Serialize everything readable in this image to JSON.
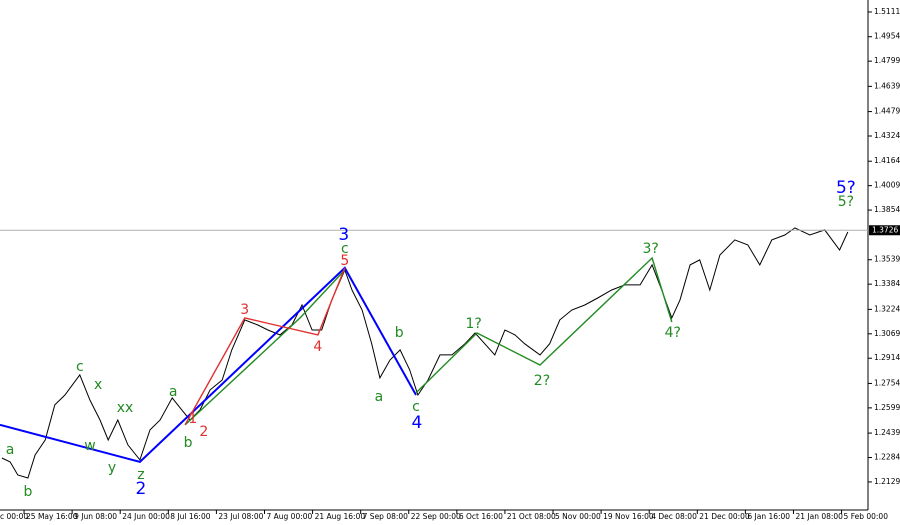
{
  "chart_data": {
    "type": "line",
    "xlim": [
      0.5,
      18.55
    ],
    "ylim": [
      1.1951,
      1.5187
    ],
    "xticks": [
      {
        "value": 0,
        "label": "c 00:00"
      },
      {
        "value": 1,
        "label": "25 May 16:00"
      },
      {
        "value": 2,
        "label": "9 Jun 08:00"
      },
      {
        "value": 3,
        "label": "24 Jun 00:00"
      },
      {
        "value": 4,
        "label": "8 Jul 16:00"
      },
      {
        "value": 5,
        "label": "23 Jul 08:00"
      },
      {
        "value": 6,
        "label": "7 Aug 00:00"
      },
      {
        "value": 7,
        "label": "21 Aug 16:00"
      },
      {
        "value": 8,
        "label": "7 Sep 08:00"
      },
      {
        "value": 9,
        "label": "22 Sep 00:00"
      },
      {
        "value": 10,
        "label": "6 Oct 16:00"
      },
      {
        "value": 11,
        "label": "21 Oct 08:00"
      },
      {
        "value": 12,
        "label": "5 Nov 00:00"
      },
      {
        "value": 13,
        "label": "19 Nov 16:00"
      },
      {
        "value": 14,
        "label": "4 Dec 08:00"
      },
      {
        "value": 15,
        "label": "21 Dec 00:00"
      },
      {
        "value": 16,
        "label": "6 Jan 16:00"
      },
      {
        "value": 17,
        "label": "21 Jan 08:00"
      },
      {
        "value": 18,
        "label": "5 Feb 00:00"
      }
    ],
    "yticks": [
      1.2129,
      1.2284,
      1.2439,
      1.2599,
      1.2754,
      1.2914,
      1.3069,
      1.3224,
      1.3384,
      1.3539,
      1.3854,
      1.4009,
      1.4164,
      1.4324,
      1.4479,
      1.4639,
      1.4799,
      1.4954,
      1.5111
    ],
    "last_price": 1.3726,
    "series": [
      {
        "color": "#000000",
        "x": [
          0.54,
          0.71,
          0.87,
          1.08,
          1.23,
          1.44,
          1.64,
          1.85,
          2.16,
          2.37,
          2.58,
          2.75,
          2.95,
          3.16,
          3.41,
          3.62,
          3.83,
          4.08,
          4.28,
          4.45,
          4.66,
          4.87,
          5.12,
          5.32,
          5.59,
          5.86,
          6.07,
          6.32,
          6.57,
          6.78,
          6.99,
          7.19,
          7.4,
          7.67,
          7.82,
          8.03,
          8.23,
          8.4,
          8.61,
          8.82,
          9.02,
          9.19,
          9.4,
          9.65,
          9.9,
          10.17,
          10.38,
          10.58,
          10.79,
          11.0,
          11.21,
          11.41,
          11.73,
          11.93,
          12.14,
          12.39,
          12.66,
          12.93,
          13.22,
          13.49,
          13.81,
          14.06,
          14.26,
          14.47,
          14.64,
          14.85,
          15.05,
          15.26,
          15.47,
          15.78,
          16.05,
          16.3,
          16.55,
          16.82,
          17.03,
          17.34,
          17.65,
          17.96,
          18.13
        ],
        "values": [
          1.2281,
          1.2256,
          1.2173,
          1.2154,
          1.23,
          1.2395,
          1.2618,
          1.2681,
          1.2808,
          1.2649,
          1.2522,
          1.2395,
          1.2522,
          1.2364,
          1.2269,
          1.2459,
          1.2522,
          1.2662,
          1.2586,
          1.2522,
          1.2586,
          1.2713,
          1.2776,
          1.2967,
          1.3157,
          1.3125,
          1.3093,
          1.3062,
          1.3125,
          1.3252,
          1.3093,
          1.3093,
          1.3284,
          1.3474,
          1.3347,
          1.322,
          1.3006,
          1.2789,
          1.2903,
          1.2967,
          1.284,
          1.2681,
          1.2776,
          1.2935,
          1.2935,
          1.3006,
          1.3074,
          1.3006,
          1.2935,
          1.3093,
          1.3062,
          1.3006,
          1.2935,
          1.3006,
          1.3157,
          1.322,
          1.3252,
          1.3296,
          1.3347,
          1.3379,
          1.3379,
          1.3506,
          1.3347,
          1.317,
          1.3284,
          1.3506,
          1.3538,
          1.3347,
          1.3569,
          1.3665,
          1.3633,
          1.3506,
          1.3665,
          1.3696,
          1.3741,
          1.3696,
          1.3728,
          1.3601,
          1.3715
        ]
      }
    ],
    "overlays": [
      {
        "color": "#0000ff",
        "x": [
          0.5,
          3.41,
          7.67,
          9.15
        ],
        "y": [
          1.2491,
          1.2256,
          1.3487,
          1.2681
        ]
      },
      {
        "color": "#228b22",
        "x": [
          4.35,
          6.74,
          7.67
        ],
        "y": [
          1.2491,
          1.317,
          1.3474
        ]
      },
      {
        "color": "#228b22",
        "x": [
          9.15,
          10.42,
          11.73,
          14.06,
          14.47
        ],
        "y": [
          1.2694,
          1.3074,
          1.2871,
          1.355,
          1.3144
        ]
      },
      {
        "color": "#e03030",
        "x": [
          4.35,
          5.59,
          6.22,
          7.11,
          7.67
        ],
        "y": [
          1.2491,
          1.317,
          1.3125,
          1.3062,
          1.3487
        ]
      }
    ],
    "annotations": [
      {
        "text": "a",
        "x": 0.71,
        "y": 1.2332,
        "color": "#228b22"
      },
      {
        "text": "b",
        "x": 1.08,
        "y": 1.2066,
        "color": "#228b22"
      },
      {
        "text": "c",
        "x": 2.16,
        "y": 1.2859,
        "color": "#228b22"
      },
      {
        "text": "x",
        "x": 2.54,
        "y": 1.2744,
        "color": "#228b22"
      },
      {
        "text": "w",
        "x": 2.37,
        "y": 1.2357,
        "color": "#228b22"
      },
      {
        "text": "xx",
        "x": 3.1,
        "y": 1.2599,
        "color": "#228b22"
      },
      {
        "text": "y",
        "x": 2.83,
        "y": 1.2218,
        "color": "#228b22"
      },
      {
        "text": "z",
        "x": 3.43,
        "y": 1.2173,
        "color": "#228b22"
      },
      {
        "text": "a",
        "x": 4.1,
        "y": 1.27,
        "color": "#228b22"
      },
      {
        "text": "b",
        "x": 4.41,
        "y": 1.2376,
        "color": "#228b22"
      },
      {
        "text": "c",
        "x": 7.67,
        "y": 1.3607,
        "color": "#228b22"
      },
      {
        "text": "a",
        "x": 8.38,
        "y": 1.2668,
        "color": "#228b22"
      },
      {
        "text": "b",
        "x": 8.8,
        "y": 1.3074,
        "color": "#228b22"
      },
      {
        "text": "c",
        "x": 9.15,
        "y": 1.2605,
        "color": "#228b22"
      },
      {
        "text": "1?",
        "x": 10.35,
        "y": 1.3132,
        "color": "#228b22"
      },
      {
        "text": "2?",
        "x": 11.77,
        "y": 1.277,
        "color": "#228b22"
      },
      {
        "text": "3?",
        "x": 14.03,
        "y": 1.3607,
        "color": "#228b22"
      },
      {
        "text": "4?",
        "x": 14.49,
        "y": 1.3074,
        "color": "#228b22"
      },
      {
        "text": "5?",
        "x": 18.09,
        "y": 1.3906,
        "color": "#228b22"
      },
      {
        "text": "2",
        "x": 3.43,
        "y": 1.2085,
        "color": "#0000ff",
        "size": "large"
      },
      {
        "text": "3",
        "x": 7.65,
        "y": 1.3696,
        "color": "#0000ff",
        "size": "large"
      },
      {
        "text": "4",
        "x": 9.17,
        "y": 1.2503,
        "color": "#0000ff",
        "size": "large"
      },
      {
        "text": "5?",
        "x": 18.09,
        "y": 1.3994,
        "color": "#0000ff",
        "size": "large"
      },
      {
        "text": "1",
        "x": 4.51,
        "y": 1.2529,
        "color": "#e03030"
      },
      {
        "text": "2",
        "x": 4.74,
        "y": 1.2446,
        "color": "#e03030"
      },
      {
        "text": "3",
        "x": 5.59,
        "y": 1.322,
        "color": "#e03030"
      },
      {
        "text": "4",
        "x": 7.11,
        "y": 1.2986,
        "color": "#e03030"
      },
      {
        "text": "5",
        "x": 7.67,
        "y": 1.3531,
        "color": "#e03030"
      }
    ]
  }
}
